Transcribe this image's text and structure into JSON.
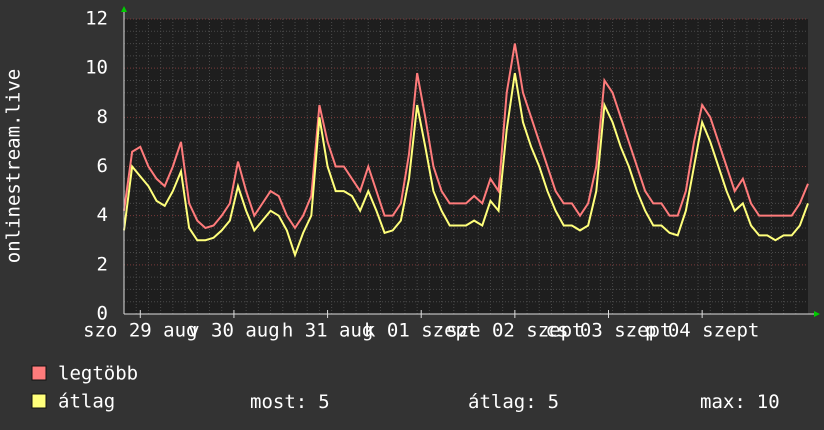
{
  "chart_data": {
    "type": "line",
    "y_label": "onlinestream.live",
    "x": [
      0,
      2,
      4,
      6,
      8,
      10,
      12,
      14,
      16,
      18,
      20,
      22,
      24,
      26,
      28,
      30,
      32,
      34,
      36,
      38,
      40,
      42,
      44,
      46,
      48,
      50,
      52,
      54,
      56,
      58,
      60,
      62,
      64,
      66,
      68,
      70,
      72,
      74,
      76,
      78,
      80,
      82,
      84,
      86,
      88,
      90,
      92,
      94,
      96,
      98,
      100,
      102,
      104,
      106,
      108,
      110,
      112,
      114,
      116,
      118,
      120,
      122,
      124,
      126,
      128,
      130,
      132,
      134,
      136,
      138,
      140,
      142,
      144,
      146,
      148,
      150,
      152,
      154,
      156,
      158,
      160,
      162,
      164,
      166,
      168
    ],
    "xlim": [
      0,
      168
    ],
    "xticks": [
      {
        "value": 4,
        "label": "szo 29 aug"
      },
      {
        "value": 27,
        "label": "v 30 aug"
      },
      {
        "value": 50,
        "label": "h 31 aug"
      },
      {
        "value": 73,
        "label": "k 01 szept"
      },
      {
        "value": 96,
        "label": "sze 02 szept"
      },
      {
        "value": 119,
        "label": "cs 03 szept"
      },
      {
        "value": 142,
        "label": "p 04 szept"
      }
    ],
    "ylim": [
      0,
      12
    ],
    "yticks": [
      0,
      2,
      4,
      6,
      8,
      10,
      12
    ],
    "grid": true,
    "series": [
      {
        "name": "legtöbb",
        "color": "#ff7b7b",
        "values": [
          4.2,
          6.6,
          6.8,
          6.0,
          5.5,
          5.2,
          6.0,
          7.0,
          4.5,
          3.8,
          3.5,
          3.6,
          4.0,
          4.5,
          6.2,
          5.0,
          4.0,
          4.5,
          5.0,
          4.8,
          4.0,
          3.5,
          4.0,
          4.8,
          8.5,
          7.0,
          6.0,
          6.0,
          5.5,
          5.0,
          6.0,
          5.0,
          4.0,
          4.0,
          4.5,
          6.5,
          9.8,
          8.0,
          6.0,
          5.0,
          4.5,
          4.5,
          4.5,
          4.8,
          4.5,
          5.5,
          5.0,
          9.0,
          11.0,
          9.0,
          8.0,
          7.0,
          6.0,
          5.0,
          4.5,
          4.5,
          4.0,
          4.5,
          6.0,
          9.5,
          9.0,
          8.0,
          7.0,
          6.0,
          5.0,
          4.5,
          4.5,
          4.0,
          4.0,
          5.0,
          7.0,
          8.5,
          8.0,
          7.0,
          6.0,
          5.0,
          5.5,
          4.5,
          4.0,
          4.0,
          4.0,
          4.0,
          4.0,
          4.5,
          5.3
        ]
      },
      {
        "name": "átlag",
        "color": "#ffff7b",
        "values": [
          3.4,
          6.0,
          5.6,
          5.2,
          4.6,
          4.4,
          5.0,
          5.8,
          3.5,
          3.0,
          3.0,
          3.1,
          3.4,
          3.8,
          5.2,
          4.2,
          3.4,
          3.8,
          4.2,
          4.0,
          3.4,
          2.4,
          3.3,
          4.0,
          8.0,
          6.0,
          5.0,
          5.0,
          4.8,
          4.2,
          5.0,
          4.2,
          3.3,
          3.4,
          3.8,
          5.5,
          8.5,
          6.8,
          5.0,
          4.2,
          3.6,
          3.6,
          3.6,
          3.8,
          3.6,
          4.6,
          4.2,
          7.5,
          9.8,
          7.8,
          6.8,
          6.0,
          5.0,
          4.2,
          3.6,
          3.6,
          3.4,
          3.6,
          5.0,
          8.5,
          7.8,
          6.8,
          6.0,
          5.0,
          4.2,
          3.6,
          3.6,
          3.3,
          3.2,
          4.2,
          6.0,
          7.8,
          7.0,
          6.0,
          5.0,
          4.2,
          4.5,
          3.6,
          3.2,
          3.2,
          3.0,
          3.2,
          3.2,
          3.6,
          4.5
        ]
      }
    ],
    "stats": [
      {
        "label": "most:",
        "value": 5
      },
      {
        "label": "átlag:",
        "value": 5
      },
      {
        "label": "max:",
        "value": 10
      }
    ]
  }
}
